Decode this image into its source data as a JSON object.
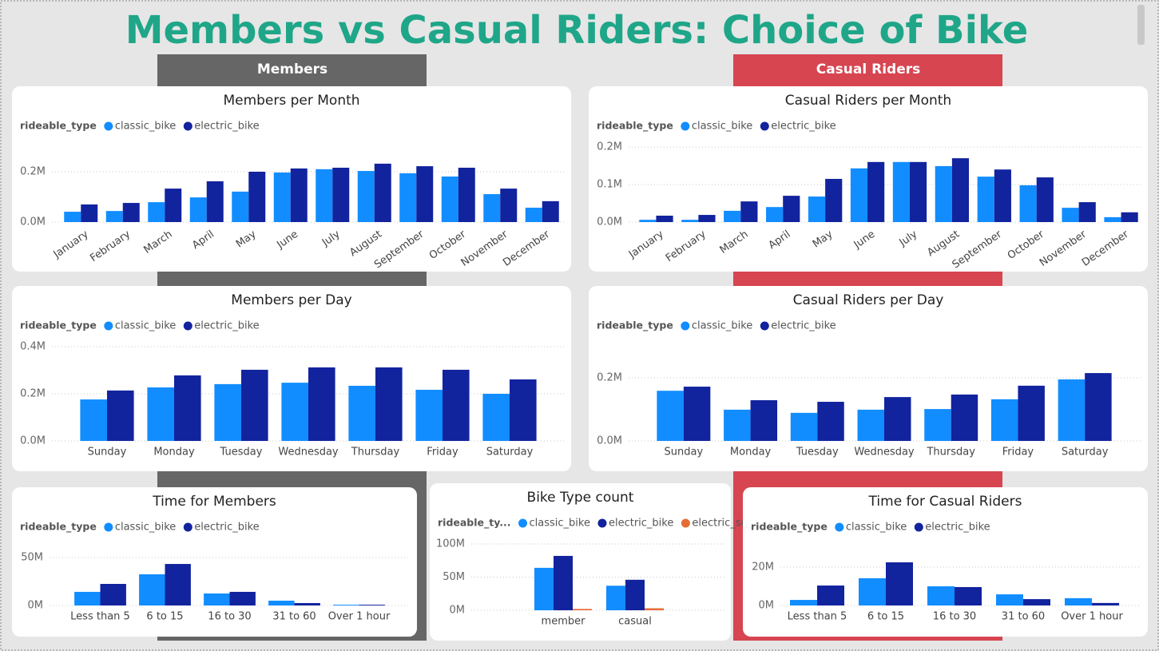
{
  "title": "Members vs Casual Riders: Choice of Bike",
  "sections": [
    "Members",
    "Casual Riders"
  ],
  "chart_data": [
    {
      "type": "bar",
      "title": "Members per Month",
      "legend_title": "rideable_type",
      "categories": [
        "January",
        "February",
        "March",
        "April",
        "May",
        "June",
        "July",
        "August",
        "September",
        "October",
        "November",
        "December"
      ],
      "series": [
        {
          "name": "classic_bike",
          "color": "#118dff",
          "values": [
            41000,
            44000,
            79000,
            98000,
            121000,
            197000,
            210000,
            203000,
            194000,
            181000,
            111000,
            57000
          ]
        },
        {
          "name": "electric_bike",
          "color": "#12239e",
          "values": [
            70000,
            76000,
            133000,
            162000,
            200000,
            213000,
            216000,
            232000,
            222000,
            216000,
            133000,
            83000
          ]
        }
      ],
      "ylim": [
        0,
        300000
      ],
      "yticks": [
        {
          "value": 0,
          "label": "0.0M"
        },
        {
          "value": 200000,
          "label": "0.2M"
        }
      ],
      "grid": true
    },
    {
      "type": "bar",
      "title": "Casual Riders per Month",
      "legend_title": "rideable_type",
      "categories": [
        "January",
        "February",
        "March",
        "April",
        "May",
        "June",
        "July",
        "August",
        "September",
        "October",
        "November",
        "December"
      ],
      "series": [
        {
          "name": "classic_bike",
          "color": "#118dff",
          "values": [
            6000,
            6000,
            30000,
            40000,
            68000,
            143000,
            160000,
            149000,
            121000,
            98000,
            38000,
            13000
          ]
        },
        {
          "name": "electric_bike",
          "color": "#12239e",
          "values": [
            17000,
            19000,
            55000,
            70000,
            115000,
            160000,
            160000,
            170000,
            140000,
            119000,
            53000,
            26000
          ]
        }
      ],
      "ylim": [
        0,
        200000
      ],
      "yticks": [
        {
          "value": 0,
          "label": "0.0M"
        },
        {
          "value": 100000,
          "label": "0.1M"
        },
        {
          "value": 200000,
          "label": "0.2M"
        }
      ],
      "grid": true
    },
    {
      "type": "bar",
      "title": "Members per Day",
      "legend_title": "rideable_type",
      "categories": [
        "Sunday",
        "Monday",
        "Tuesday",
        "Wednesday",
        "Thursday",
        "Friday",
        "Saturday"
      ],
      "series": [
        {
          "name": "classic_bike",
          "color": "#118dff",
          "values": [
            176000,
            227000,
            241000,
            247000,
            234000,
            217000,
            200000
          ]
        },
        {
          "name": "electric_bike",
          "color": "#12239e",
          "values": [
            214000,
            278000,
            302000,
            312000,
            312000,
            302000,
            261000
          ]
        }
      ],
      "ylim": [
        0,
        400000
      ],
      "yticks": [
        {
          "value": 0,
          "label": "0.0M"
        },
        {
          "value": 200000,
          "label": "0.2M"
        },
        {
          "value": 400000,
          "label": "0.4M"
        }
      ],
      "grid": true
    },
    {
      "type": "bar",
      "title": "Casual Riders per Day",
      "legend_title": "rideable_type",
      "categories": [
        "Sunday",
        "Monday",
        "Tuesday",
        "Wednesday",
        "Thursday",
        "Friday",
        "Saturday"
      ],
      "series": [
        {
          "name": "classic_bike",
          "color": "#118dff",
          "values": [
            159000,
            99000,
            89000,
            99000,
            101000,
            132000,
            195000
          ]
        },
        {
          "name": "electric_bike",
          "color": "#12239e",
          "values": [
            172000,
            129000,
            124000,
            139000,
            147000,
            175000,
            215000
          ]
        }
      ],
      "ylim": [
        0,
        300000
      ],
      "yticks": [
        {
          "value": 0,
          "label": "0.0M"
        },
        {
          "value": 200000,
          "label": "0.2M"
        }
      ],
      "grid": true
    },
    {
      "type": "bar",
      "title": "Time for Members",
      "legend_title": "rideable_type",
      "categories": [
        "Less than 5",
        "6 to 15",
        "16 to 30",
        "31 to 60",
        "Over 1 hour"
      ],
      "series": [
        {
          "name": "classic_bike",
          "color": "#118dff",
          "values": [
            14200000,
            32500000,
            12500000,
            5000000,
            800000
          ]
        },
        {
          "name": "electric_bike",
          "color": "#12239e",
          "values": [
            22500000,
            43300000,
            14200000,
            2500000,
            800000
          ]
        }
      ],
      "ylim": [
        0,
        60000000
      ],
      "yticks": [
        {
          "value": 0,
          "label": "0M"
        },
        {
          "value": 50000000,
          "label": "50M"
        }
      ],
      "grid": true
    },
    {
      "type": "bar",
      "title": "Bike Type count",
      "legend_title": "rideable_ty...",
      "categories": [
        "member",
        "casual"
      ],
      "series": [
        {
          "name": "classic_bike",
          "color": "#118dff",
          "values": [
            64000000,
            37000000
          ]
        },
        {
          "name": "electric_bike",
          "color": "#12239e",
          "values": [
            82000000,
            46000000
          ]
        },
        {
          "name": "electric_sc...",
          "color": "#e66c37",
          "values": [
            2000000,
            3000000
          ]
        }
      ],
      "ylim": [
        0,
        100000000
      ],
      "yticks": [
        {
          "value": 0,
          "label": "0M"
        },
        {
          "value": 50000000,
          "label": "50M"
        },
        {
          "value": 100000000,
          "label": "100M"
        }
      ],
      "grid": true
    },
    {
      "type": "bar",
      "title": "Time for Casual Riders",
      "legend_title": "rideable_type",
      "categories": [
        "Less than 5",
        "6 to 15",
        "16 to 30",
        "31 to 60",
        "Over 1 hour"
      ],
      "series": [
        {
          "name": "classic_bike",
          "color": "#118dff",
          "values": [
            2900000,
            14200000,
            10000000,
            5800000,
            3800000
          ]
        },
        {
          "name": "electric_bike",
          "color": "#12239e",
          "values": [
            10400000,
            22500000,
            9600000,
            3300000,
            1300000
          ]
        }
      ],
      "ylim": [
        0,
        30000000
      ],
      "yticks": [
        {
          "value": 0,
          "label": "0M"
        },
        {
          "value": 20000000,
          "label": "20M"
        }
      ],
      "grid": true
    }
  ]
}
